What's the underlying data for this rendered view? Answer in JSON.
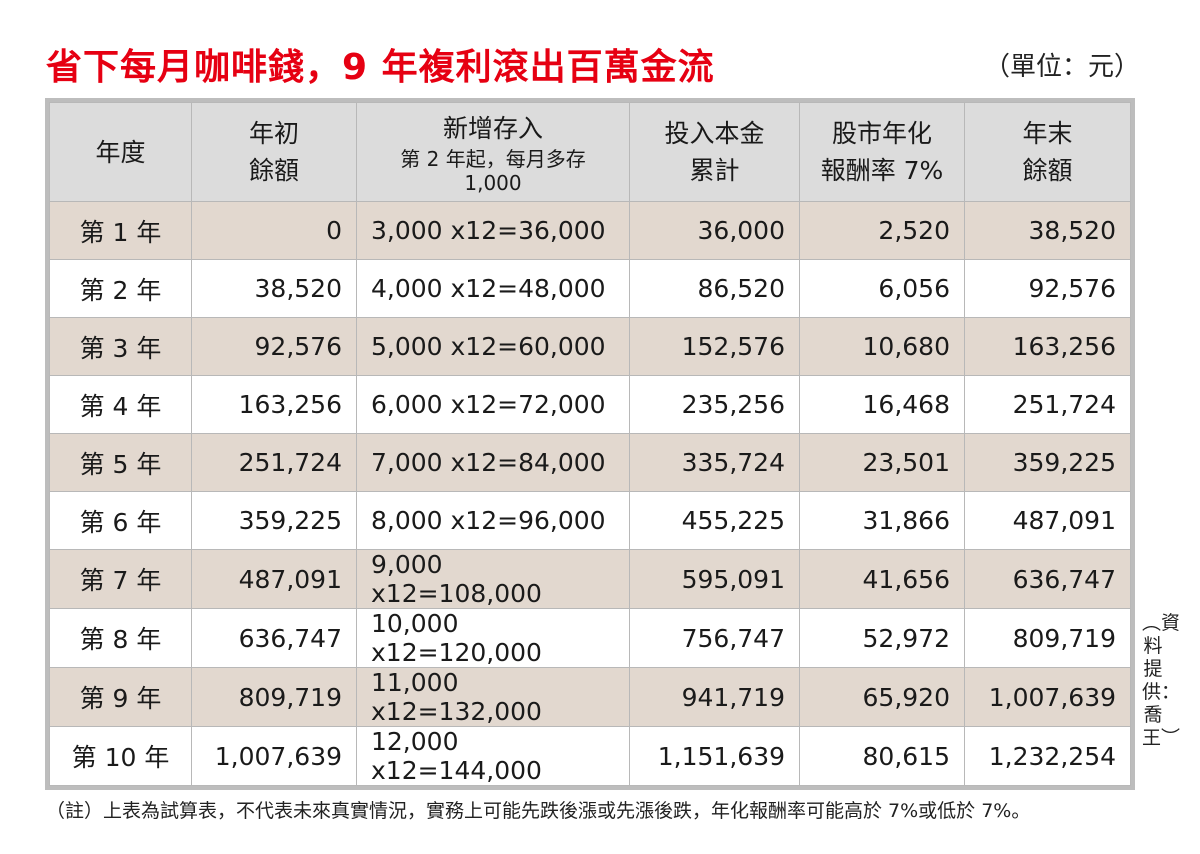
{
  "title": "省下每月咖啡錢，9 年複利滾出百萬金流",
  "unit": "（單位：元）",
  "headers": [
    {
      "main": "年度",
      "sub": ""
    },
    {
      "main": "年初\n餘額",
      "sub": ""
    },
    {
      "main": "新增存入",
      "sub": "第 2 年起，每月多存 1,000"
    },
    {
      "main": "投入本金\n累計",
      "sub": ""
    },
    {
      "main": "股市年化\n報酬率 7%",
      "sub": ""
    },
    {
      "main": "年末\n餘額",
      "sub": ""
    }
  ],
  "rows": [
    [
      "第 1 年",
      "0",
      "3,000 x12=36,000",
      "36,000",
      "2,520",
      "38,520"
    ],
    [
      "第 2 年",
      "38,520",
      "4,000 x12=48,000",
      "86,520",
      "6,056",
      "92,576"
    ],
    [
      "第 3 年",
      "92,576",
      "5,000 x12=60,000",
      "152,576",
      "10,680",
      "163,256"
    ],
    [
      "第 4 年",
      "163,256",
      "6,000 x12=72,000",
      "235,256",
      "16,468",
      "251,724"
    ],
    [
      "第 5 年",
      "251,724",
      "7,000 x12=84,000",
      "335,724",
      "23,501",
      "359,225"
    ],
    [
      "第 6 年",
      "359,225",
      "8,000 x12=96,000",
      "455,225",
      "31,866",
      "487,091"
    ],
    [
      "第 7 年",
      "487,091",
      "9,000 x12=108,000",
      "595,091",
      "41,656",
      "636,747"
    ],
    [
      "第 8 年",
      "636,747",
      "10,000 x12=120,000",
      "756,747",
      "52,972",
      "809,719"
    ],
    [
      "第 9 年",
      "809,719",
      "11,000 x12=132,000",
      "941,719",
      "65,920",
      "1,007,639"
    ],
    [
      "第 10 年",
      "1,007,639",
      "12,000 x12=144,000",
      "1,151,639",
      "80,615",
      "1,232,254"
    ]
  ],
  "source": "︵資料提供：喬王︶",
  "note": "（註）上表為試算表，不代表未來真實情況，實務上可能先跌後漲或先漲後跌，年化報酬率可能高於 7%或低於 7%。",
  "colors": {
    "title": "#e60012",
    "header_bg": "#dcdcdc",
    "odd_row_bg": "#e2d8cf",
    "border": "#b8b8b8"
  }
}
